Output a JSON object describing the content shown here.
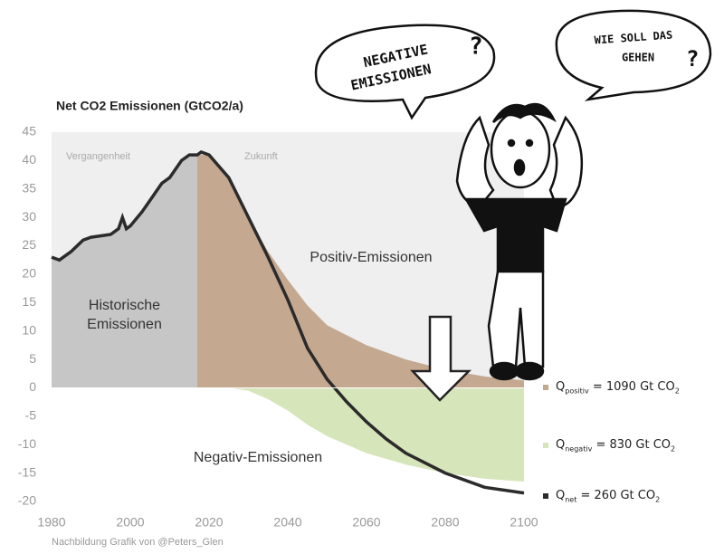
{
  "chart_data": {
    "type": "area",
    "title": "Net CO2 Emissionen (GtCO2/a)",
    "xlim": [
      1980,
      2100
    ],
    "ylim": [
      -20,
      45
    ],
    "xticks": [
      1980,
      2000,
      2020,
      2040,
      2060,
      2080,
      2100
    ],
    "yticks": [
      -20,
      -15,
      -10,
      -5,
      0,
      5,
      10,
      15,
      20,
      25,
      30,
      35,
      40,
      45
    ],
    "period_labels": [
      "Vergangenheit",
      "Zukunft"
    ],
    "series": [
      {
        "name": "Historische Emissionen",
        "color": "#c6c6c6",
        "x": [
          1980,
          1982,
          1985,
          1988,
          1990,
          1995,
          1997,
          1998,
          1999,
          2000,
          2003,
          2005,
          2008,
          2010,
          2013,
          2015,
          2017
        ],
        "values": [
          23,
          22.5,
          24,
          26,
          26.5,
          27,
          28,
          30,
          28,
          28.5,
          31,
          33,
          36,
          37,
          40,
          41,
          41
        ]
      },
      {
        "name": "Positiv-Emissionen",
        "color": "#c4a88f",
        "x": [
          2017,
          2020,
          2025,
          2030,
          2035,
          2040,
          2045,
          2050,
          2060,
          2070,
          2080,
          2090,
          2100
        ],
        "values": [
          41,
          41,
          37,
          30,
          24,
          19,
          14.5,
          11,
          7.5,
          5,
          3.2,
          2,
          1.3
        ]
      },
      {
        "name": "Negativ-Emissionen",
        "color": "#d7e5bb",
        "x": [
          2025,
          2030,
          2035,
          2040,
          2045,
          2050,
          2060,
          2070,
          2080,
          2090,
          2100
        ],
        "values": [
          0,
          -0.5,
          -2,
          -4,
          -6.5,
          -8.5,
          -11.5,
          -13.5,
          -15,
          -16,
          -16.5
        ]
      },
      {
        "color": "#2b2b2b",
        "x": [
          1980,
          1982,
          1985,
          1988,
          1990,
          1995,
          1997,
          1998,
          1999,
          2000,
          2003,
          2005,
          2008,
          2010,
          2013,
          2015,
          2017,
          2018,
          2020,
          2025,
          2030,
          2035,
          2040,
          2045,
          2050,
          2055,
          2060,
          2065,
          2070,
          2080,
          2090,
          2100
        ],
        "values": [
          23,
          22.5,
          24,
          26,
          26.5,
          27,
          28,
          30,
          28,
          28.5,
          31,
          33,
          36,
          37,
          40,
          41,
          41,
          41.5,
          41,
          37,
          30,
          23,
          15.5,
          7,
          1.5,
          -2.5,
          -6,
          -9,
          -11.5,
          -15,
          -17.5,
          -18.5
        ]
      }
    ],
    "totals": [
      {
        "symbol": "Q",
        "sub": "positiv",
        "text": "= 1090 Gt CO",
        "unit_sub": "2",
        "color": "#c4a88f"
      },
      {
        "symbol": "Q",
        "sub": "negativ",
        "text": "= 830 Gt CO",
        "unit_sub": "2",
        "color": "#d7e5bb"
      },
      {
        "symbol": "Q",
        "sub": "net",
        "text": "= 260 Gt CO",
        "unit_sub": "2",
        "color": "#2b2b2b"
      }
    ],
    "source": "Nachbildung Grafik von @Peters_Glen"
  },
  "bubbles": [
    {
      "lines": [
        "NEGATIVE",
        "EMISSIONEN"
      ],
      "mark": "?"
    },
    {
      "lines": [
        "WIE SOLL DAS",
        "GEHEN"
      ],
      "mark": "?"
    }
  ]
}
